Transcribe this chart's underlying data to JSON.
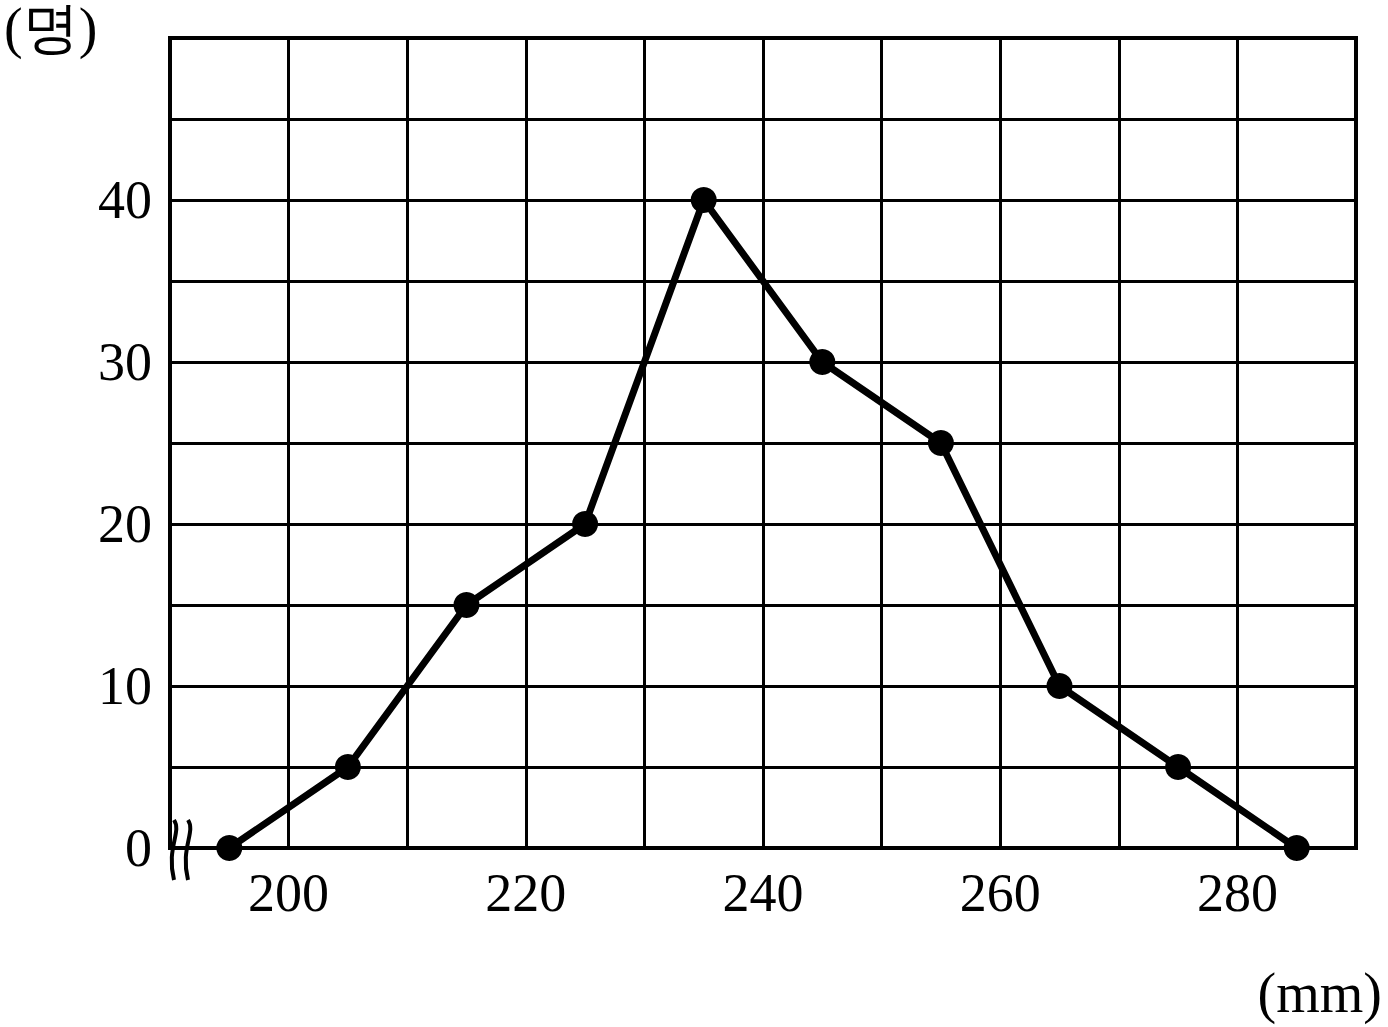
{
  "chart_data": {
    "type": "line",
    "xlabel": "(mm)",
    "ylabel": "(명)",
    "x": [
      195,
      205,
      215,
      225,
      235,
      245,
      255,
      265,
      275,
      285
    ],
    "series": [
      {
        "color": "#000000",
        "values": [
          0,
          5,
          15,
          20,
          40,
          30,
          25,
          10,
          5,
          0
        ]
      }
    ],
    "xlim": [
      190,
      290
    ],
    "xticks": [
      {
        "value": 190,
        "label": null
      },
      200,
      {
        "value": 210,
        "label": null
      },
      220,
      {
        "value": 230,
        "label": null
      },
      240,
      {
        "value": 250,
        "label": null
      },
      260,
      {
        "value": 270,
        "label": null
      },
      280,
      {
        "value": 290,
        "label": null
      }
    ],
    "ylim": [
      0,
      50
    ],
    "yticks": [
      0,
      {
        "value": 5,
        "label": null
      },
      10,
      {
        "value": 15,
        "label": null
      },
      20,
      {
        "value": 25,
        "label": null
      },
      30,
      {
        "value": 35,
        "label": null
      },
      40,
      {
        "value": 45,
        "label": null
      },
      {
        "value": 50,
        "label": null
      }
    ],
    "grid": true,
    "marker": "circle",
    "line_style": "solid"
  }
}
